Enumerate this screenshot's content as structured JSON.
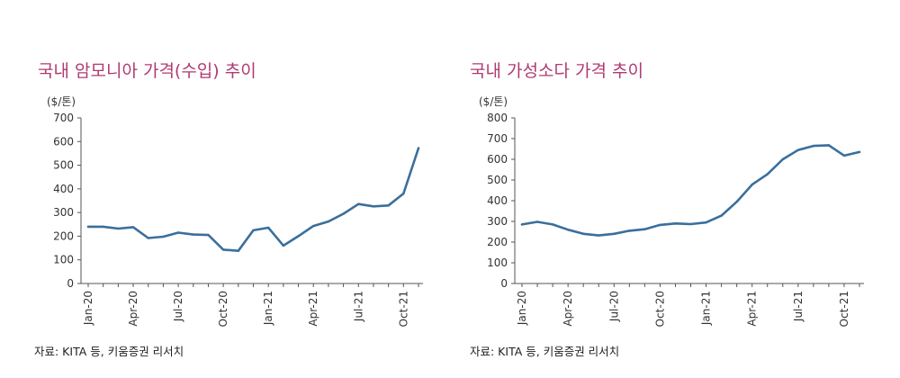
{
  "chart_data": [
    {
      "type": "line",
      "title": "국내 암모니아 가격(수입) 추이",
      "unit_label": "($/톤)",
      "source": "자료: KITA 등, 키움증권 리서치",
      "xlabel": "",
      "ylabel": "",
      "ylim": [
        0,
        700
      ],
      "yticks": [
        0,
        100,
        200,
        300,
        400,
        500,
        600,
        700
      ],
      "xtick_labels": [
        {
          "index": 0,
          "label": "Jan-20"
        },
        {
          "index": 3,
          "label": "Apr-20"
        },
        {
          "index": 6,
          "label": "Jul-20"
        },
        {
          "index": 9,
          "label": "Oct-20"
        },
        {
          "index": 12,
          "label": "Jan-21"
        },
        {
          "index": 15,
          "label": "Apr-21"
        },
        {
          "index": 18,
          "label": "Jul-21"
        },
        {
          "index": 21,
          "label": "Oct-21"
        }
      ],
      "line_color": "#3a6f9c",
      "series": [
        {
          "values": [
            240,
            240,
            232,
            238,
            192,
            198,
            215,
            207,
            205,
            143,
            138,
            225,
            236,
            160,
            200,
            243,
            262,
            295,
            336,
            326,
            330,
            380,
            572
          ]
        }
      ]
    },
    {
      "type": "line",
      "title": "국내 가성소다 가격 추이",
      "unit_label": "($/톤)",
      "source": "자료: KITA 등, 키움증권 리서치",
      "xlabel": "",
      "ylabel": "",
      "ylim": [
        0,
        800
      ],
      "yticks": [
        0,
        100,
        200,
        300,
        400,
        500,
        600,
        700,
        800
      ],
      "xtick_labels": [
        {
          "index": 0,
          "label": "Jan-20"
        },
        {
          "index": 3,
          "label": "Apr-20"
        },
        {
          "index": 6,
          "label": "Jul-20"
        },
        {
          "index": 9,
          "label": "Oct-20"
        },
        {
          "index": 12,
          "label": "Jan-21"
        },
        {
          "index": 15,
          "label": "Apr-21"
        },
        {
          "index": 18,
          "label": "Jul-21"
        },
        {
          "index": 21,
          "label": "Oct-21"
        }
      ],
      "line_color": "#3a6f9c",
      "series": [
        {
          "values": [
            285,
            298,
            285,
            260,
            240,
            232,
            240,
            255,
            262,
            283,
            290,
            287,
            295,
            328,
            395,
            478,
            528,
            600,
            645,
            665,
            668,
            618,
            635
          ]
        }
      ]
    }
  ]
}
